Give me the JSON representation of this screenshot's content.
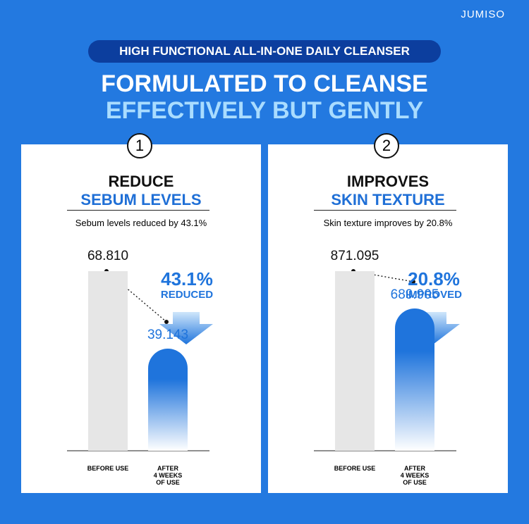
{
  "brand": "JUMISO",
  "badge": "HIGH FUNCTIONAL ALL-IN-ONE DAILY CLEANSER",
  "headline": [
    "FORMULATED TO CLEANSE",
    "EFFECTIVELY BUT GENTLY"
  ],
  "chart_data": [
    {
      "type": "bar",
      "number": "1",
      "title": [
        "REDUCE",
        "SEBUM LEVELS"
      ],
      "subtitle": "Sebum levels reduced by 43.1%",
      "categories": [
        "BEFORE USE",
        "AFTER\n4 WEEKS\nOF USE"
      ],
      "values": [
        68.81,
        39.143
      ],
      "value_labels": [
        "68.810",
        "39.143"
      ],
      "annotation": [
        "43.1%",
        "REDUCED"
      ],
      "colors": [
        "#e6e6e6",
        "#1f74dc"
      ]
    },
    {
      "type": "bar",
      "number": "2",
      "title": [
        "IMPROVES",
        "SKIN TEXTURE"
      ],
      "subtitle": "Skin texture improves by 20.8%",
      "categories": [
        "BEFORE USE",
        "AFTER\n4 WEEKS\nOF USE"
      ],
      "values": [
        871.095,
        689.905
      ],
      "value_labels": [
        "871.095",
        "689.905"
      ],
      "annotation": [
        "20.8%",
        "IMPROVED"
      ],
      "colors": [
        "#e6e6e6",
        "#1f74dc"
      ]
    }
  ]
}
